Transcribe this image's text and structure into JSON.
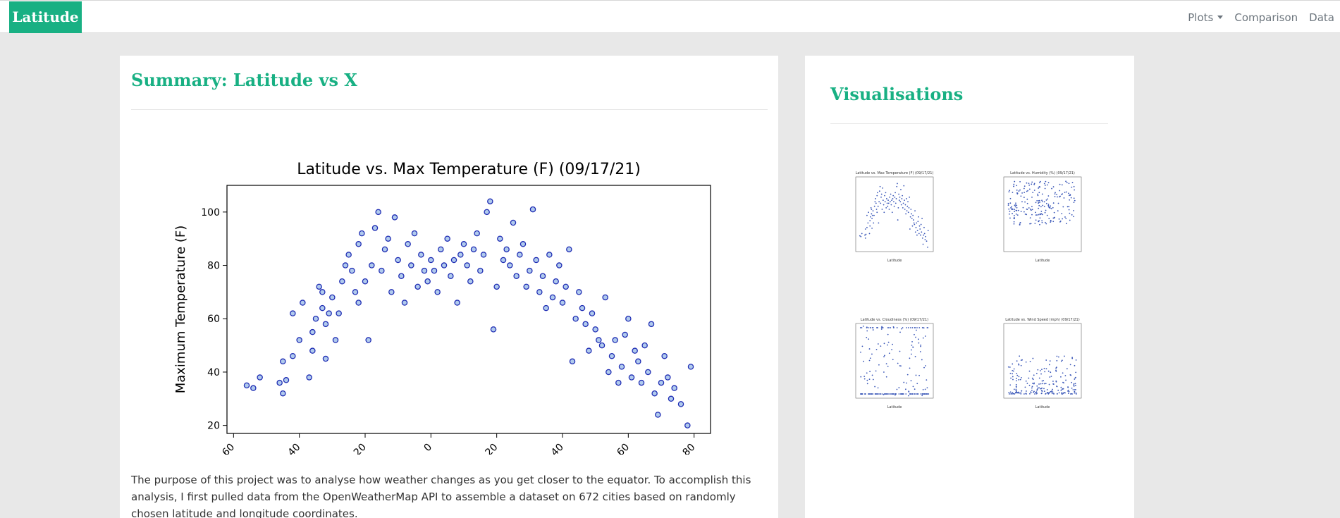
{
  "navbar": {
    "brand": "Latitude",
    "links": [
      {
        "label": "Plots",
        "has_dropdown": true
      },
      {
        "label": "Comparison"
      },
      {
        "label": "Data"
      }
    ]
  },
  "main": {
    "title": "Summary: Latitude vs X",
    "paragraph": "The purpose of this project was to analyse how weather changes as you get closer to the equator. To accomplish this analysis, I first pulled data from the OpenWeatherMap API to assemble a dataset on 672 cities based on randomly chosen latitude and longitude coordinates."
  },
  "sidebar": {
    "title": "Visualisations",
    "thumbnails": [
      {
        "title": "Latitude vs. Max Temperature (F) (09/17/21)",
        "xlabel": "Latitude",
        "kind": "temperature"
      },
      {
        "title": "Latitude vs. Humidity (%) (09/17/21)",
        "xlabel": "Latitude",
        "kind": "humidity"
      },
      {
        "title": "Latitude vs. Cloudiness (%) (09/17/21)",
        "xlabel": "Latitude",
        "kind": "cloudiness"
      },
      {
        "title": "Latitude vs. Wind Speed (mph) (09/17/21)",
        "xlabel": "Latitude",
        "kind": "wind"
      }
    ]
  },
  "chart_data": {
    "type": "scatter",
    "title": "Latitude vs. Max Temperature (F) (09/17/21)",
    "xlabel": "Latitude",
    "ylabel": "Maximum Temperature (F)",
    "xlim": [
      -62,
      85
    ],
    "ylim": [
      17,
      110
    ],
    "xticks": [
      -60,
      -40,
      -20,
      0,
      20,
      40,
      60,
      80
    ],
    "yticks": [
      20,
      40,
      60,
      80,
      100
    ],
    "grid": false,
    "point_color": "#1f2db4",
    "points": [
      [
        -56,
        35
      ],
      [
        -54,
        34
      ],
      [
        -52,
        38
      ],
      [
        -46,
        36
      ],
      [
        -45,
        44
      ],
      [
        -45,
        32
      ],
      [
        -44,
        37
      ],
      [
        -42,
        46
      ],
      [
        -42,
        62
      ],
      [
        -40,
        52
      ],
      [
        -39,
        66
      ],
      [
        -37,
        38
      ],
      [
        -36,
        55
      ],
      [
        -36,
        48
      ],
      [
        -35,
        60
      ],
      [
        -34,
        72
      ],
      [
        -33,
        70
      ],
      [
        -33,
        64
      ],
      [
        -32,
        58
      ],
      [
        -32,
        45
      ],
      [
        -31,
        62
      ],
      [
        -30,
        68
      ],
      [
        -29,
        52
      ],
      [
        -28,
        62
      ],
      [
        -27,
        74
      ],
      [
        -26,
        80
      ],
      [
        -25,
        84
      ],
      [
        -24,
        78
      ],
      [
        -23,
        70
      ],
      [
        -22,
        66
      ],
      [
        -22,
        88
      ],
      [
        -21,
        92
      ],
      [
        -20,
        74
      ],
      [
        -19,
        52
      ],
      [
        -18,
        80
      ],
      [
        -17,
        94
      ],
      [
        -16,
        100
      ],
      [
        -15,
        78
      ],
      [
        -14,
        86
      ],
      [
        -13,
        90
      ],
      [
        -12,
        70
      ],
      [
        -11,
        98
      ],
      [
        -10,
        82
      ],
      [
        -9,
        76
      ],
      [
        -8,
        66
      ],
      [
        -7,
        88
      ],
      [
        -6,
        80
      ],
      [
        -5,
        92
      ],
      [
        -4,
        72
      ],
      [
        -3,
        84
      ],
      [
        -2,
        78
      ],
      [
        -1,
        74
      ],
      [
        0,
        82
      ],
      [
        1,
        78
      ],
      [
        2,
        70
      ],
      [
        3,
        86
      ],
      [
        4,
        80
      ],
      [
        5,
        90
      ],
      [
        6,
        76
      ],
      [
        7,
        82
      ],
      [
        8,
        66
      ],
      [
        9,
        84
      ],
      [
        10,
        88
      ],
      [
        11,
        80
      ],
      [
        12,
        74
      ],
      [
        13,
        86
      ],
      [
        14,
        92
      ],
      [
        15,
        78
      ],
      [
        16,
        84
      ],
      [
        17,
        100
      ],
      [
        18,
        104
      ],
      [
        19,
        56
      ],
      [
        20,
        72
      ],
      [
        21,
        90
      ],
      [
        22,
        82
      ],
      [
        23,
        86
      ],
      [
        24,
        80
      ],
      [
        25,
        96
      ],
      [
        26,
        76
      ],
      [
        27,
        84
      ],
      [
        28,
        88
      ],
      [
        29,
        72
      ],
      [
        30,
        78
      ],
      [
        31,
        101
      ],
      [
        32,
        82
      ],
      [
        33,
        70
      ],
      [
        34,
        76
      ],
      [
        35,
        64
      ],
      [
        36,
        84
      ],
      [
        37,
        68
      ],
      [
        38,
        74
      ],
      [
        39,
        80
      ],
      [
        40,
        66
      ],
      [
        41,
        72
      ],
      [
        42,
        86
      ],
      [
        43,
        44
      ],
      [
        44,
        60
      ],
      [
        45,
        70
      ],
      [
        46,
        64
      ],
      [
        47,
        58
      ],
      [
        48,
        48
      ],
      [
        49,
        62
      ],
      [
        50,
        56
      ],
      [
        51,
        52
      ],
      [
        52,
        50
      ],
      [
        53,
        68
      ],
      [
        54,
        40
      ],
      [
        55,
        46
      ],
      [
        56,
        52
      ],
      [
        57,
        36
      ],
      [
        58,
        42
      ],
      [
        59,
        54
      ],
      [
        60,
        60
      ],
      [
        61,
        38
      ],
      [
        62,
        48
      ],
      [
        63,
        44
      ],
      [
        64,
        36
      ],
      [
        65,
        50
      ],
      [
        66,
        40
      ],
      [
        67,
        58
      ],
      [
        68,
        32
      ],
      [
        69,
        24
      ],
      [
        70,
        36
      ],
      [
        71,
        46
      ],
      [
        72,
        38
      ],
      [
        73,
        30
      ],
      [
        74,
        34
      ],
      [
        76,
        28
      ],
      [
        78,
        20
      ],
      [
        79,
        42
      ]
    ]
  }
}
